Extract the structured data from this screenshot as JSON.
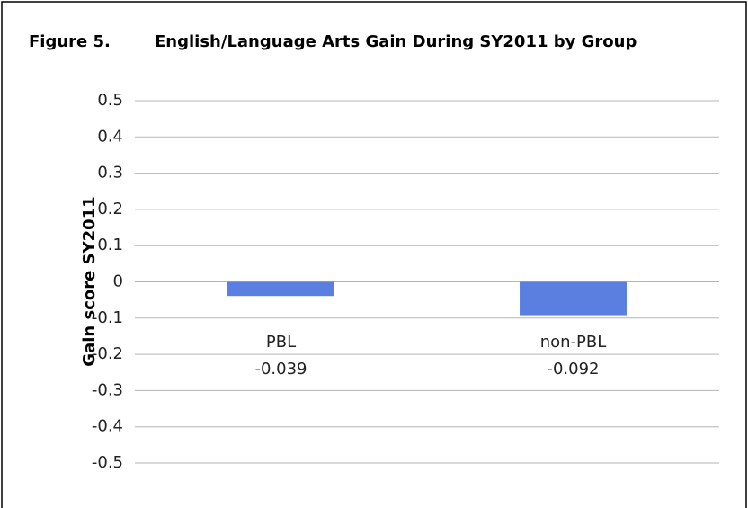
{
  "chart_data": {
    "type": "bar",
    "figure_label": "Figure 5.",
    "title": "English/Language Arts Gain During SY2011 by Group",
    "ylabel": "Gain score SY2011",
    "categories": [
      "PBL",
      "non-PBL"
    ],
    "values": [
      -0.039,
      -0.092
    ],
    "color": "#5b7fe0",
    "ylim": [
      -0.5,
      0.5
    ],
    "yticks": [
      0.5,
      0.4,
      0.3,
      0.2,
      0.1,
      0,
      -0.1,
      -0.2,
      -0.3,
      -0.4,
      -0.5
    ],
    "grid": true
  }
}
